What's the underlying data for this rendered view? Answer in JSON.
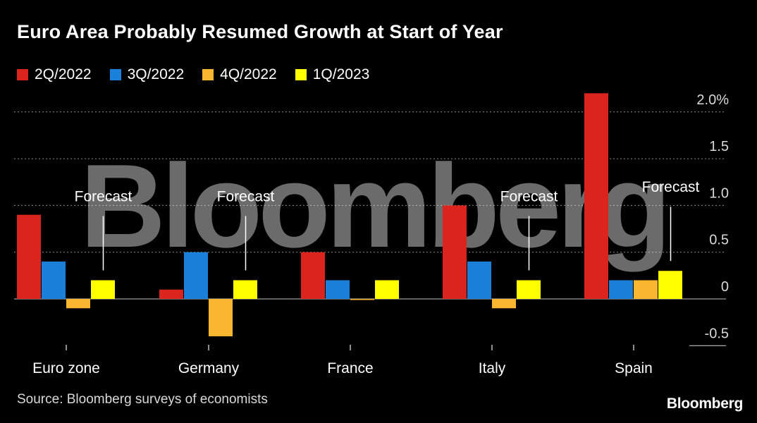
{
  "header": {
    "title": "Euro Area Probably Resumed Growth at Start of Year"
  },
  "footer": {
    "source": "Source: Bloomberg surveys of economists",
    "brand": "Bloomberg"
  },
  "watermark": "Bloomberg",
  "colors": {
    "background": "#000000",
    "2Q/2022": "#dc241f",
    "3Q/2022": "#1a80d9",
    "4Q/2022": "#fbb630",
    "1Q/2023": "#ffff00",
    "grid": "#8a8a8a"
  },
  "chart_data": {
    "type": "bar",
    "title": "Euro Area Probably Resumed Growth at Start of Year",
    "categories": [
      "Euro zone",
      "Germany",
      "France",
      "Italy",
      "Spain"
    ],
    "series": [
      {
        "name": "2Q/2022",
        "color": "#dc241f",
        "values": [
          0.9,
          0.1,
          0.5,
          1.0,
          2.2
        ]
      },
      {
        "name": "3Q/2022",
        "color": "#1a80d9",
        "values": [
          0.4,
          0.5,
          0.2,
          0.4,
          0.2
        ]
      },
      {
        "name": "4Q/2022",
        "color": "#fbb630",
        "values": [
          -0.1,
          -0.4,
          -0.01,
          -0.1,
          0.2
        ]
      },
      {
        "name": "1Q/2023",
        "color": "#ffff00",
        "values": [
          0.2,
          0.2,
          0.2,
          0.2,
          0.3
        ]
      }
    ],
    "forecast_label": "Forecast",
    "forecast_categories": [
      "Euro zone",
      "Germany",
      "Italy",
      "Spain"
    ],
    "yticks": [
      {
        "value": 2.0,
        "label": "2.0%"
      },
      {
        "value": 1.5,
        "label": "1.5"
      },
      {
        "value": 1.0,
        "label": "1.0"
      },
      {
        "value": 0.5,
        "label": "0.5"
      },
      {
        "value": 0,
        "label": "0"
      },
      {
        "value": -0.5,
        "label": "-0.5"
      }
    ],
    "ylim": [
      -0.5,
      2.2
    ],
    "grid": true,
    "legend_position": "top-left"
  }
}
